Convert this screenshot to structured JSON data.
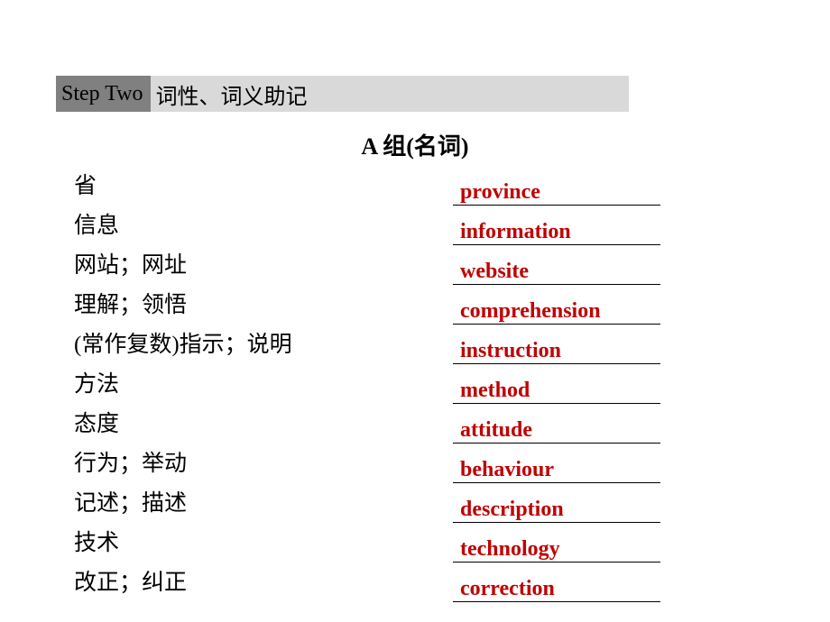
{
  "banner": {
    "step_label": "Step Two",
    "step_title": "词性、词义助记"
  },
  "group_title": "A 组(名词)",
  "accent_color": "#c00000",
  "vocab": [
    {
      "cn": "省",
      "en": "province"
    },
    {
      "cn": "信息",
      "en": "information"
    },
    {
      "cn": "网站；网址",
      "en": "website"
    },
    {
      "cn": "理解；领悟",
      "en": "comprehension"
    },
    {
      "cn": "(常作复数)指示；说明",
      "en": "instruction"
    },
    {
      "cn": "方法",
      "en": "method"
    },
    {
      "cn": "态度",
      "en": "attitude"
    },
    {
      "cn": "行为；举动",
      "en": "behaviour"
    },
    {
      "cn": "记述；描述",
      "en": "description"
    },
    {
      "cn": "技术",
      "en": "technology"
    },
    {
      "cn": "改正；纠正",
      "en": "correction"
    }
  ]
}
